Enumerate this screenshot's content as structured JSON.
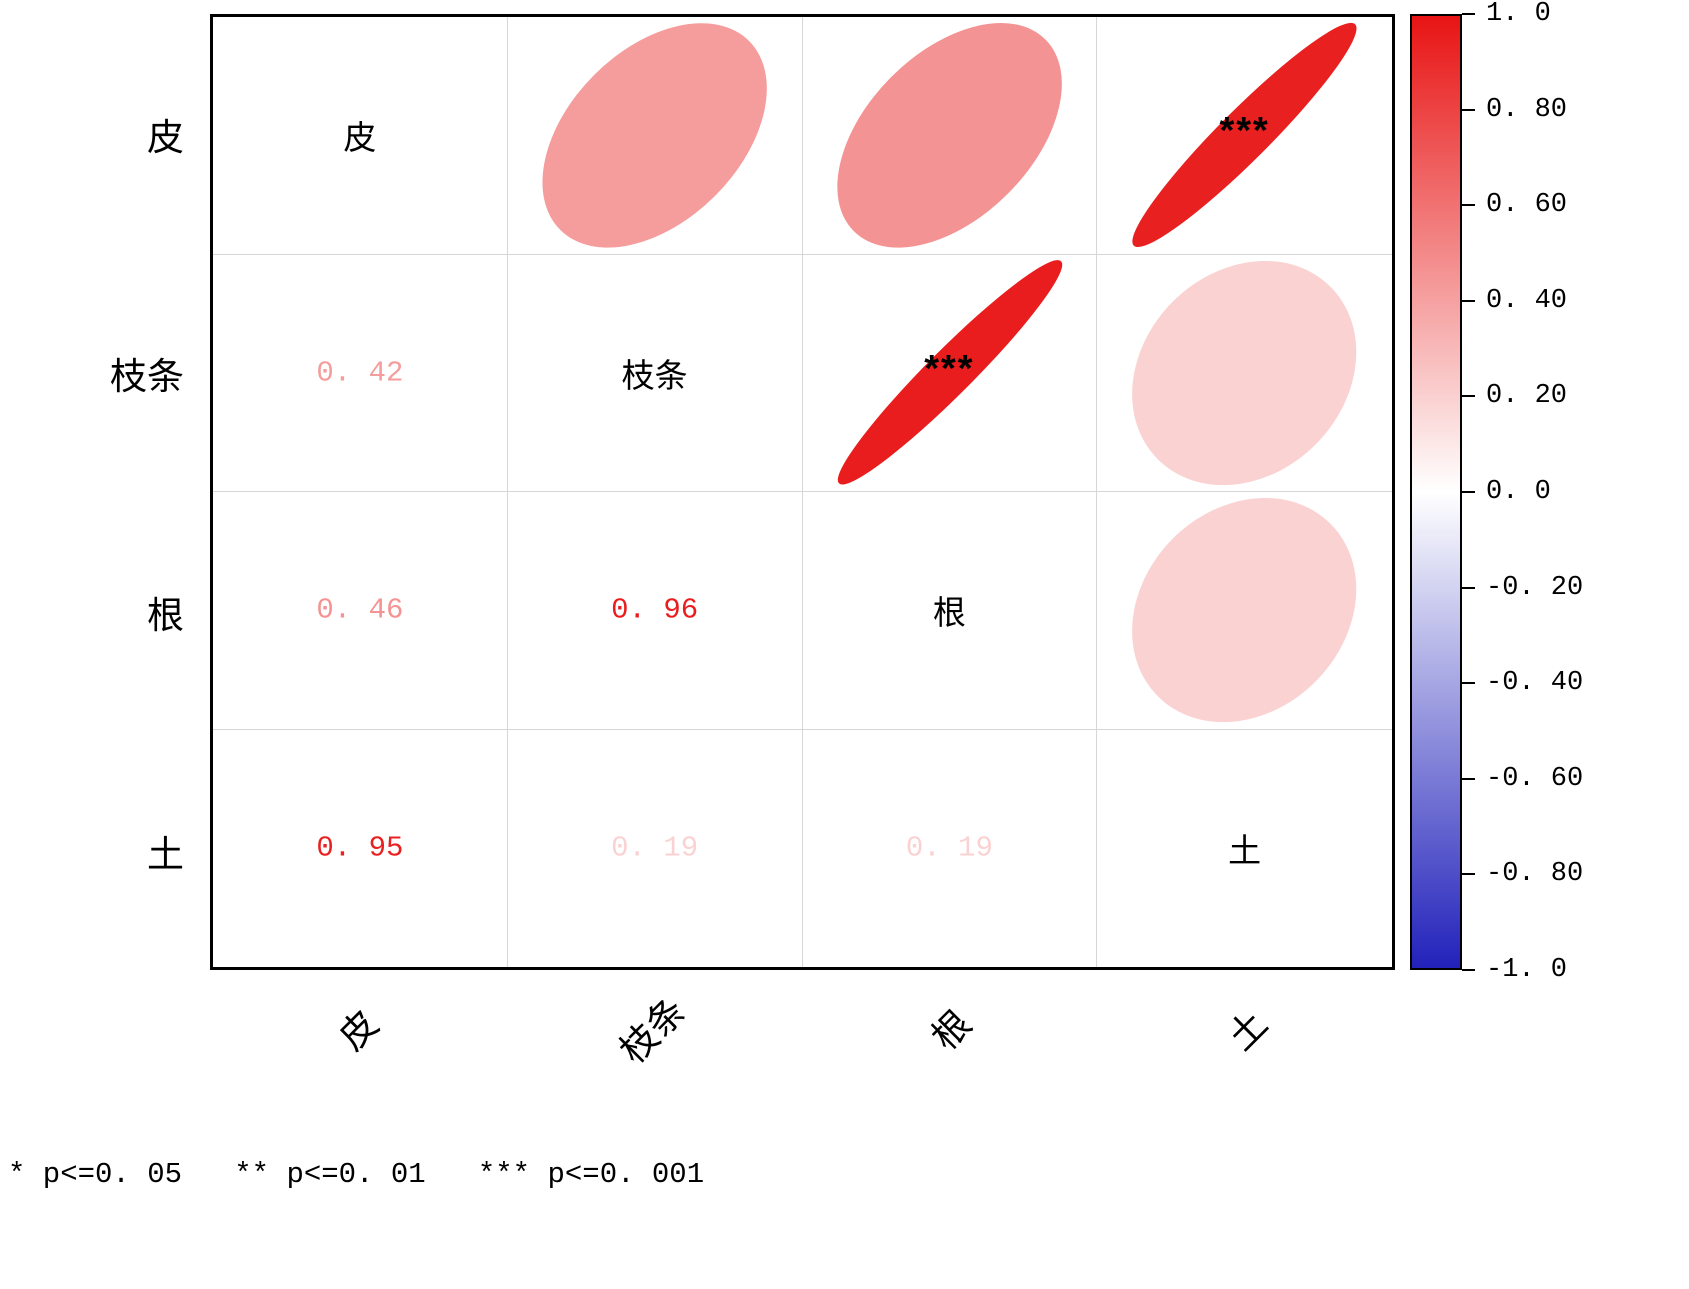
{
  "chart_data": {
    "type": "heatmap",
    "subtype": "correlation-ellipse-matrix",
    "title": "",
    "variables": [
      "皮",
      "枝条",
      "根",
      "土"
    ],
    "matrix": [
      [
        1.0,
        0.42,
        0.46,
        0.95
      ],
      [
        0.42,
        1.0,
        0.96,
        0.19
      ],
      [
        0.46,
        0.96,
        1.0,
        0.19
      ],
      [
        0.95,
        0.19,
        0.19,
        1.0
      ]
    ],
    "lower_triangle_labels": [
      {
        "row": 1,
        "col": 0,
        "text": "0. 42"
      },
      {
        "row": 2,
        "col": 0,
        "text": "0. 46"
      },
      {
        "row": 2,
        "col": 1,
        "text": "0. 96"
      },
      {
        "row": 3,
        "col": 0,
        "text": "0. 95"
      },
      {
        "row": 3,
        "col": 1,
        "text": "0. 19"
      },
      {
        "row": 3,
        "col": 2,
        "text": "0. 19"
      }
    ],
    "significance_marks": [
      {
        "row": 0,
        "col": 3,
        "stars": "***"
      },
      {
        "row": 1,
        "col": 2,
        "stars": "***"
      }
    ],
    "colorbar": {
      "position": "right",
      "range": [
        -1.0,
        1.0
      ],
      "ticks": [
        "1. 0",
        "0. 80",
        "0. 60",
        "0. 40",
        "0. 20",
        "0. 0",
        "-0. 20",
        "-0. 40",
        "-0. 60",
        "-0. 80",
        "-1. 0"
      ],
      "positive_color": "#e81414",
      "zero_color": "#ffffff",
      "negative_color": "#2222bb"
    },
    "grid": true,
    "legend": "* p<=0. 05   ** p<=0. 01   *** p<=0. 001"
  }
}
